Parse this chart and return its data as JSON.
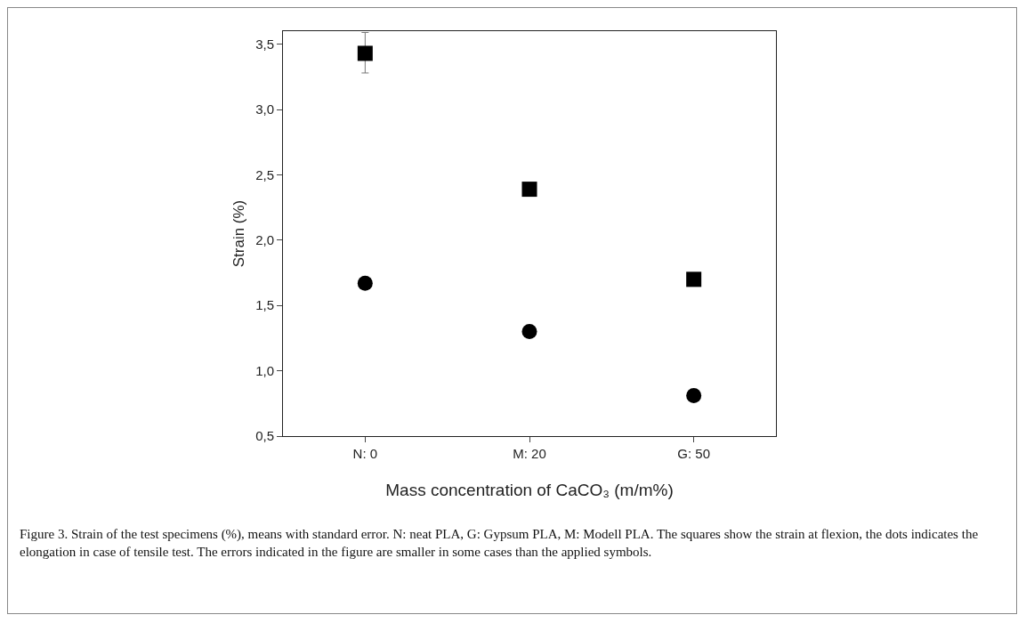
{
  "chart_data": {
    "type": "scatter",
    "xlabel": "Mass concentration of CaCO₃ (m/m%)",
    "ylabel": "Strain (%)",
    "categories": [
      "N: 0",
      "M: 20",
      "G: 50"
    ],
    "series": [
      {
        "color": "#000000",
        "marker": "square",
        "values": [
          3.43,
          2.39,
          1.7
        ],
        "errors": [
          [
            3.28,
            3.59
          ],
          null,
          null
        ]
      },
      {
        "color": "#000000",
        "marker": "circle",
        "values": [
          1.67,
          1.3,
          0.81
        ]
      }
    ],
    "ylim": [
      0.5,
      3.6
    ],
    "yticks": [
      {
        "value": 0.5,
        "label": "0,5"
      },
      {
        "value": 1.0,
        "label": "1,0"
      },
      {
        "value": 1.5,
        "label": "1,5"
      },
      {
        "value": 2.0,
        "label": "2,0"
      },
      {
        "value": 2.5,
        "label": "2,5"
      },
      {
        "value": 3.0,
        "label": "3,0"
      },
      {
        "value": 3.5,
        "label": "3,5"
      }
    ],
    "grid": false,
    "annotations": [
      "Figure 3. Strain of the test specimens (%), means with standard error. N: neat PLA, G: Gypsum PLA, M: Modell PLA. The squares show the strain at flexion, the dots indicates the elongation in case of tensile test. The errors indicated in the figure are smaller in some cases than the applied symbols."
    ]
  }
}
